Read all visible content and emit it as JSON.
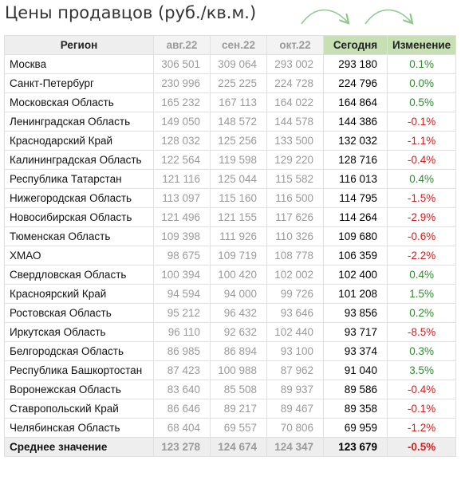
{
  "title": "Цены продавцов (руб./кв.м.)",
  "columns": {
    "region": "Регион",
    "aug": "авг.22",
    "sep": "сен.22",
    "oct": "окт.22",
    "today": "Сегодня",
    "change": "Изменение"
  },
  "rows": [
    {
      "region": "Москва",
      "aug": "306 501",
      "sep": "309 064",
      "oct": "293 002",
      "today": "293 180",
      "change": "0.1%",
      "dir": "pos"
    },
    {
      "region": "Санкт-Петербург",
      "aug": "230 996",
      "sep": "225 225",
      "oct": "224 728",
      "today": "224 796",
      "change": "0.0%",
      "dir": "pos"
    },
    {
      "region": "Московская Область",
      "aug": "165 232",
      "sep": "167 113",
      "oct": "164 022",
      "today": "164 864",
      "change": "0.5%",
      "dir": "pos"
    },
    {
      "region": "Ленинградская Область",
      "aug": "149 050",
      "sep": "148 572",
      "oct": "144 578",
      "today": "144 386",
      "change": "-0.1%",
      "dir": "neg"
    },
    {
      "region": "Краснодарский Край",
      "aug": "128 032",
      "sep": "125 256",
      "oct": "133 500",
      "today": "132 032",
      "change": "-1.1%",
      "dir": "neg"
    },
    {
      "region": "Калининградская Область",
      "aug": "122 564",
      "sep": "119 598",
      "oct": "129 220",
      "today": "128 716",
      "change": "-0.4%",
      "dir": "neg"
    },
    {
      "region": "Республика Татарстан",
      "aug": "121 116",
      "sep": "125 044",
      "oct": "115 582",
      "today": "116 013",
      "change": "0.4%",
      "dir": "pos"
    },
    {
      "region": "Нижегородская Область",
      "aug": "113 097",
      "sep": "115 160",
      "oct": "116 500",
      "today": "114 795",
      "change": "-1.5%",
      "dir": "neg"
    },
    {
      "region": "Новосибирская Область",
      "aug": "121 496",
      "sep": "121 155",
      "oct": "117 626",
      "today": "114 264",
      "change": "-2.9%",
      "dir": "neg"
    },
    {
      "region": "Тюменская Область",
      "aug": "109 398",
      "sep": "111 926",
      "oct": "110 326",
      "today": "109 680",
      "change": "-0.6%",
      "dir": "neg"
    },
    {
      "region": "ХМАО",
      "aug": "98 675",
      "sep": "109 719",
      "oct": "108 778",
      "today": "106 359",
      "change": "-2.2%",
      "dir": "neg"
    },
    {
      "region": "Свердловская Область",
      "aug": "100 394",
      "sep": "100 420",
      "oct": "102 002",
      "today": "102 400",
      "change": "0.4%",
      "dir": "pos"
    },
    {
      "region": "Красноярский Край",
      "aug": "94 594",
      "sep": "94 000",
      "oct": "99 726",
      "today": "101 208",
      "change": "1.5%",
      "dir": "pos"
    },
    {
      "region": "Ростовская Область",
      "aug": "95 212",
      "sep": "96 432",
      "oct": "93 646",
      "today": "93 856",
      "change": "0.2%",
      "dir": "pos"
    },
    {
      "region": "Иркутская Область",
      "aug": "96 110",
      "sep": "92 632",
      "oct": "102 440",
      "today": "93 717",
      "change": "-8.5%",
      "dir": "neg"
    },
    {
      "region": "Белгородская Область",
      "aug": "86 985",
      "sep": "86 894",
      "oct": "93 100",
      "today": "93 374",
      "change": "0.3%",
      "dir": "pos"
    },
    {
      "region": "Республика Башкортостан",
      "aug": "87 423",
      "sep": "100 988",
      "oct": "87 962",
      "today": "91 040",
      "change": "3.5%",
      "dir": "pos"
    },
    {
      "region": "Воронежская Область",
      "aug": "83 640",
      "sep": "85 508",
      "oct": "89 937",
      "today": "89 586",
      "change": "-0.4%",
      "dir": "neg"
    },
    {
      "region": "Ставропольский Край",
      "aug": "86 646",
      "sep": "89 217",
      "oct": "89 467",
      "today": "89 358",
      "change": "-0.1%",
      "dir": "neg"
    },
    {
      "region": "Челябинская Область",
      "aug": "68 404",
      "sep": "69 557",
      "oct": "70 806",
      "today": "69 959",
      "change": "-1.2%",
      "dir": "neg"
    }
  ],
  "average": {
    "region": "Среднее значение",
    "aug": "123 278",
    "sep": "124 674",
    "oct": "124 347",
    "today": "123 679",
    "change": "-0.5%",
    "dir": "neg"
  },
  "colors": {
    "positive": "#2e8b2e",
    "negative": "#d22020",
    "header_green": "#c6e0b4",
    "arrow": "#8fc98f"
  }
}
